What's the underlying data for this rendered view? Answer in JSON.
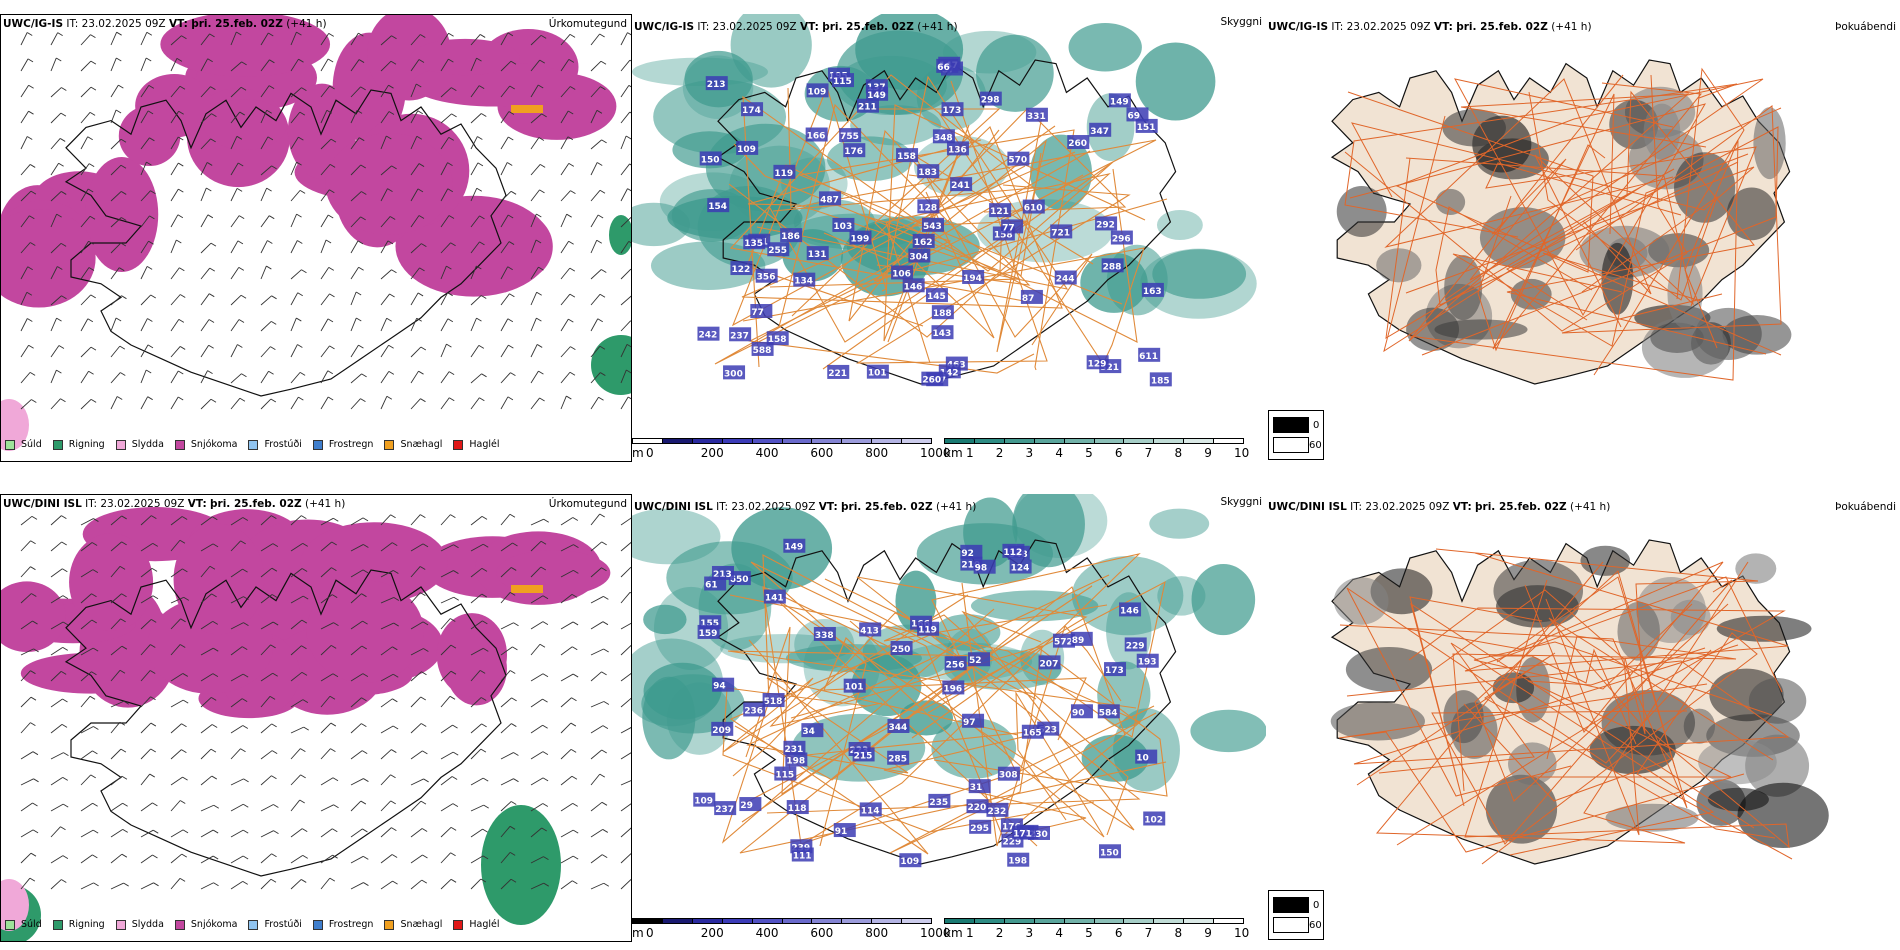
{
  "rows": [
    {
      "model": "UWC/IG-IS",
      "it_label": "IT:",
      "it_value": "23.02.2025 09Z",
      "vt_label": "VT:",
      "vt_value": "þri. 25.feb. 02Z",
      "lead": "(+41 h)",
      "precip_title": "Úrkomutegund",
      "vis_title": "Skyggni",
      "fog_title": "Þokuábendi",
      "cloud_labels": [
        "471",
        "611",
        "158",
        "183",
        "260",
        "348",
        "298",
        "57",
        "173",
        "347",
        "162",
        "463",
        "142",
        "151",
        "321",
        "163",
        "176",
        "292",
        "188",
        "149",
        "129",
        "543",
        "213",
        "255",
        "166",
        "154",
        "77",
        "109",
        "131",
        "237",
        "101",
        "242",
        "211",
        "106",
        "158",
        "221",
        "194",
        "237",
        "134",
        "119",
        "296",
        "304",
        "147",
        "186",
        "137",
        "185",
        "570",
        "487",
        "288",
        "331",
        "260",
        "136",
        "121",
        "149",
        "755",
        "721",
        "109",
        "143",
        "146",
        "158",
        "128",
        "150",
        "195",
        "241",
        "244",
        "356",
        "300",
        "174",
        "103",
        "199",
        "115",
        "588",
        "610",
        "87",
        "69",
        "66",
        "77",
        "122",
        "135",
        "145"
      ]
    },
    {
      "model": "UWC/DINI ISL",
      "it_label": "IT:",
      "it_value": "23.02.2025 09Z",
      "vt_label": "VT:",
      "vt_value": "þri. 25.feb. 02Z",
      "lead": "(+41 h)",
      "precip_title": "Úrkomutegund",
      "vis_title": "Skyggni",
      "fog_title": "Þokuábendi",
      "cloud_labels": [
        "210",
        "209",
        "198",
        "176",
        "155",
        "196",
        "623",
        "344",
        "250",
        "518",
        "295",
        "231",
        "239",
        "584",
        "115",
        "338",
        "220",
        "433",
        "232",
        "650",
        "236",
        "229",
        "308",
        "230",
        "171",
        "198",
        "173",
        "213",
        "166",
        "229",
        "237",
        "114",
        "149",
        "94",
        "124",
        "109",
        "413",
        "572",
        "348",
        "223",
        "102",
        "92",
        "91",
        "98",
        "61",
        "52",
        "159",
        "215",
        "256",
        "235",
        "150",
        "119",
        "109",
        "193",
        "207",
        "141",
        "146",
        "112",
        "10",
        "29",
        "97",
        "118",
        "90",
        "89",
        "111",
        "285",
        "165",
        "101",
        "34",
        "31"
      ]
    }
  ],
  "precip_legend": [
    {
      "label": "Súld",
      "color": "#9ee29a"
    },
    {
      "label": "Rigning",
      "color": "#2e9a6a"
    },
    {
      "label": "Slydda",
      "color": "#f0a8d8"
    },
    {
      "label": "Snjókoma",
      "color": "#c2479f"
    },
    {
      "label": "Frostúði",
      "color": "#90c4f0"
    },
    {
      "label": "Frostregn",
      "color": "#3f7ecc"
    },
    {
      "label": "Snæhagl",
      "color": "#f0a020"
    },
    {
      "label": "Haglél",
      "color": "#e01818"
    }
  ],
  "height_bar": {
    "unit": "m",
    "ticks": [
      "0",
      "200",
      "400",
      "600",
      "800",
      "1000"
    ],
    "colors": [
      "#ffffff",
      "#191970",
      "#2a2aa0",
      "#3b3bb8",
      "#5252c4",
      "#6a6acc",
      "#8484d4",
      "#9c9cdc",
      "#b4b4e4",
      "#ccccec"
    ]
  },
  "height_bar_dini": {
    "unit": "m",
    "ticks": [
      "0",
      "200",
      "400",
      "600",
      "800",
      "1000"
    ],
    "colors": [
      "#000000",
      "#191970",
      "#2a2aa0",
      "#3b3bb8",
      "#5252c4",
      "#6a6acc",
      "#8484d4",
      "#9c9cdc",
      "#b4b4e4",
      "#ccccec"
    ]
  },
  "km_bar": {
    "unit": "km",
    "ticks": [
      "1",
      "2",
      "3",
      "4",
      "5",
      "6",
      "7",
      "8",
      "9",
      "10"
    ],
    "colors": [
      "#1a7a72",
      "#2e8c84",
      "#44998f",
      "#5aa59c",
      "#72b2a9",
      "#8cc0b8",
      "#a6cec7",
      "#c0dcd6",
      "#dae9e6",
      "#ffffff"
    ]
  },
  "fog_legend": {
    "dark_value": "0",
    "light_value": "60",
    "dark_color": "#000000",
    "light_color": "#ffffff"
  },
  "colors": {
    "snow": "#c2479f",
    "rain": "#2e9a6a",
    "sleet": "#f0a8d8",
    "ice_pellets": "#f0a020",
    "teal_vis": "#3e9a8e",
    "cloud_blue": "#3c3cb4",
    "road": "#e0662a",
    "land_fog": "#f1e3d3"
  }
}
